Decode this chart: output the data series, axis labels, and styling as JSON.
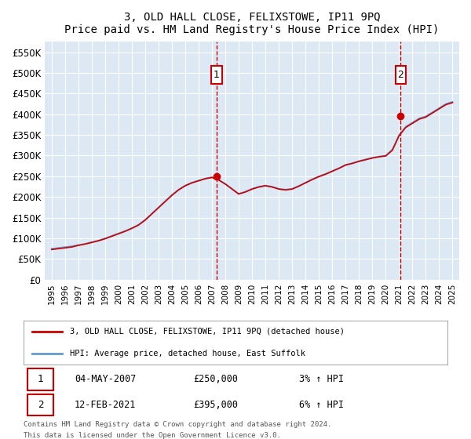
{
  "title": "3, OLD HALL CLOSE, FELIXSTOWE, IP11 9PQ",
  "subtitle": "Price paid vs. HM Land Registry's House Price Index (HPI)",
  "legend_line1": "3, OLD HALL CLOSE, FELIXSTOWE, IP11 9PQ (detached house)",
  "legend_line2": "HPI: Average price, detached house, East Suffolk",
  "footer1": "Contains HM Land Registry data © Crown copyright and database right 2024.",
  "footer2": "This data is licensed under the Open Government Licence v3.0.",
  "sale1_label": "1",
  "sale1_date": "04-MAY-2007",
  "sale1_price": "£250,000",
  "sale1_hpi": "3% ↑ HPI",
  "sale1_year": 2007.35,
  "sale1_value": 250000,
  "sale2_label": "2",
  "sale2_date": "12-FEB-2021",
  "sale2_price": "£395,000",
  "sale2_hpi": "6% ↑ HPI",
  "sale2_year": 2021.12,
  "sale2_value": 395000,
  "ylim": [
    0,
    575000
  ],
  "xlim": [
    1994.5,
    2025.5
  ],
  "yticks": [
    0,
    50000,
    100000,
    150000,
    200000,
    250000,
    300000,
    350000,
    400000,
    450000,
    500000,
    550000
  ],
  "ytick_labels": [
    "£0",
    "£50K",
    "£100K",
    "£150K",
    "£200K",
    "£250K",
    "£300K",
    "£350K",
    "£400K",
    "£450K",
    "£500K",
    "£550K"
  ],
  "xticks": [
    1995,
    1996,
    1997,
    1998,
    1999,
    2000,
    2001,
    2002,
    2003,
    2004,
    2005,
    2006,
    2007,
    2008,
    2009,
    2010,
    2011,
    2012,
    2013,
    2014,
    2015,
    2016,
    2017,
    2018,
    2019,
    2020,
    2021,
    2022,
    2023,
    2024,
    2025
  ],
  "background_color": "#dce9f5",
  "plot_bg_color": "#dce9f5",
  "grid_color": "#ffffff",
  "red_line_color": "#cc0000",
  "blue_line_color": "#6699cc",
  "marker_box_color": "#cc0000",
  "dashed_line_color": "#cc0000"
}
